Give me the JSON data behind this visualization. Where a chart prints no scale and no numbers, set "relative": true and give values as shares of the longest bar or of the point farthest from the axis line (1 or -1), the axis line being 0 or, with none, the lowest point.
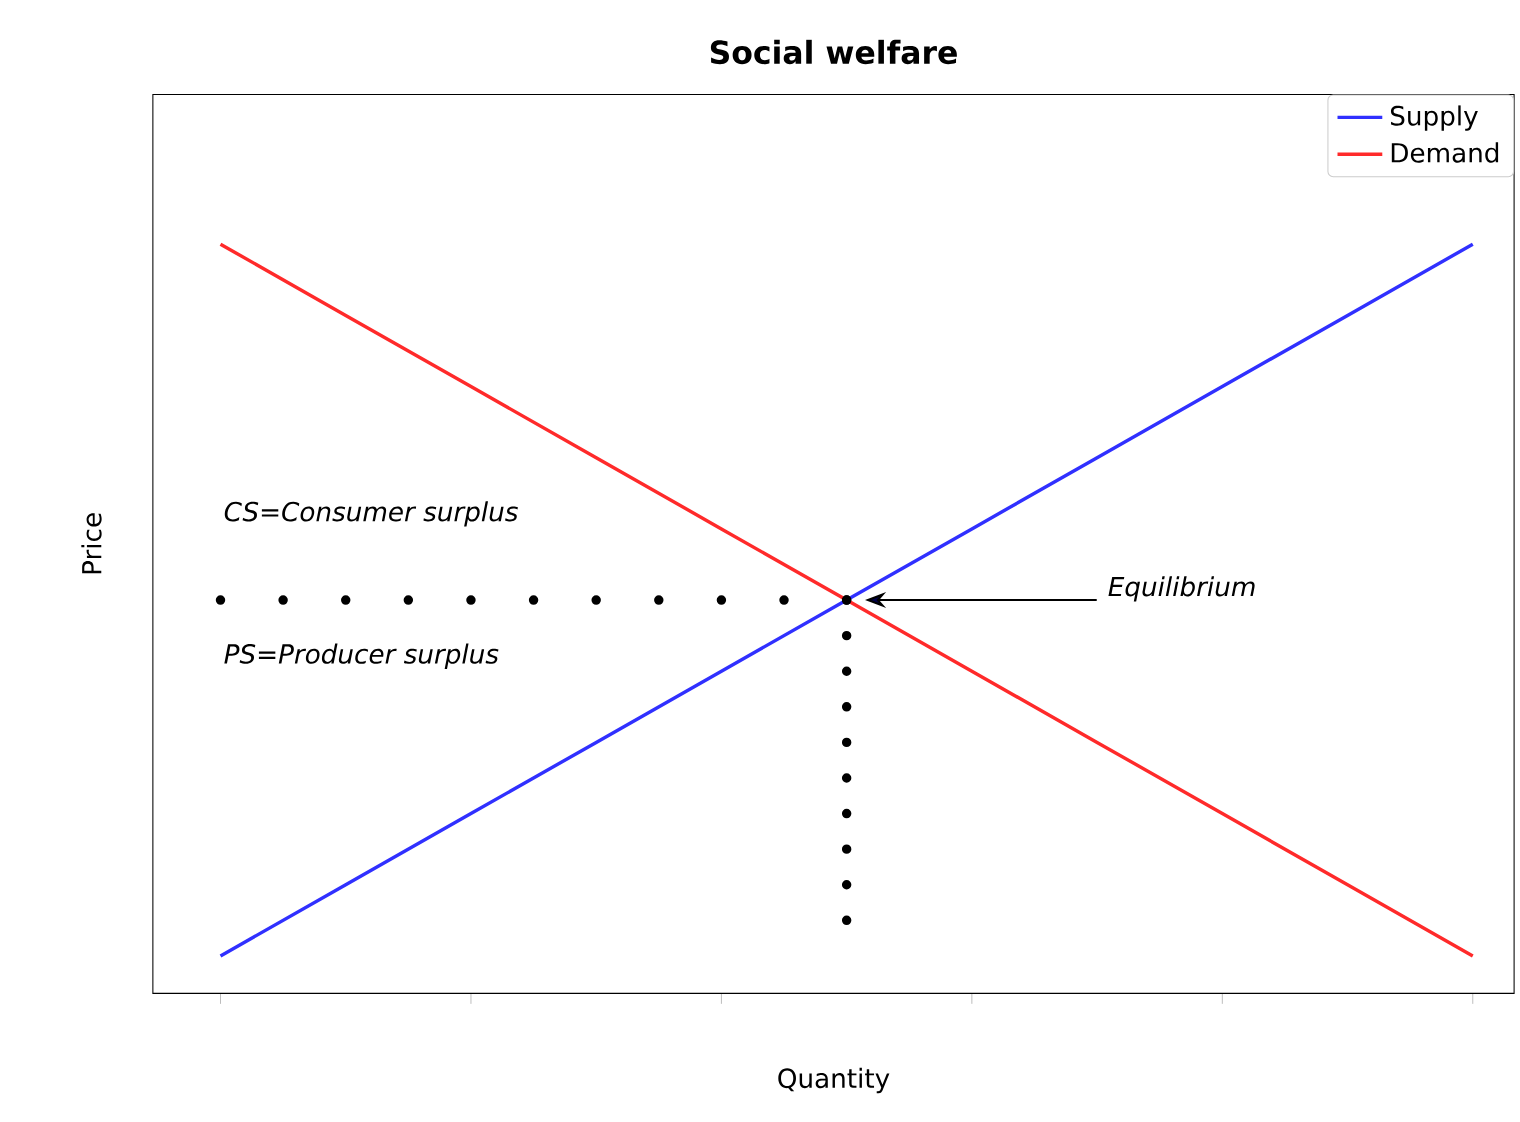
{
  "chart_data": {
    "type": "line",
    "title": "Social welfare",
    "xlabel": "Quantity",
    "ylabel": "Price",
    "relative": true,
    "categories": [
      null,
      null,
      null,
      null,
      null,
      null,
      null,
      null,
      null,
      null,
      null
    ],
    "legend": "top right",
    "line_style": "solid",
    "series": [
      {
        "name": "Supply",
        "color": "#3030ff",
        "values": [
          0.05,
          0.145,
          0.24,
          0.335,
          0.43,
          0.525,
          0.62,
          0.715,
          0.81,
          0.905,
          1
        ]
      },
      {
        "name": "Demand",
        "color": "#ff2a2a",
        "values": [
          1,
          0.905,
          0.81,
          0.715,
          0.62,
          0.525,
          0.43,
          0.335,
          0.24,
          0.145,
          0.05
        ]
      },
      {
        "color": "#000000",
        "line_style": "dotted",
        "values": [
          0.525,
          0.525,
          0.525,
          0.525,
          0.525,
          0.525,
          null,
          null,
          null,
          null,
          null
        ]
      }
    ],
    "annotations": [
      "CS=Consumer surplus",
      "PS=Producer surplus",
      "Equilibrium"
    ]
  }
}
